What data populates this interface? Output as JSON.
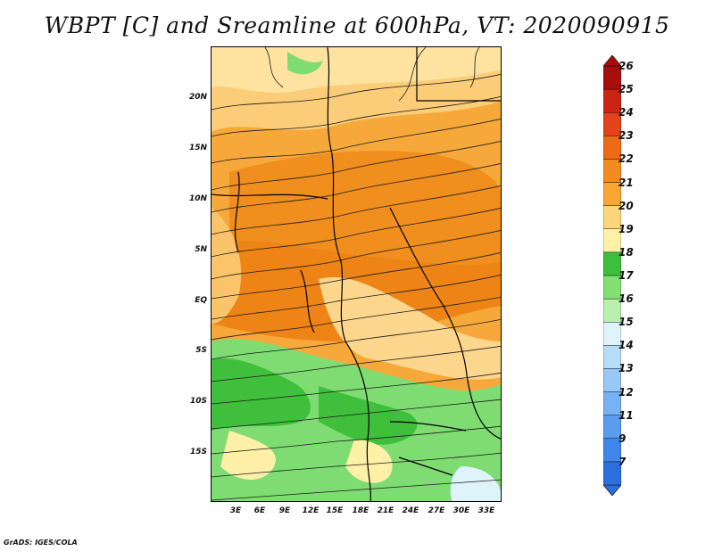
{
  "title": "WBPT [C] and Sreamline at 600hPa, VT: 2020090915",
  "footer": "GrADS: IGES/COLA",
  "lat_labels": [
    "20N",
    "15N",
    "10N",
    "5N",
    "EQ",
    "5S",
    "10S",
    "15S"
  ],
  "lon_labels": [
    "3E",
    "6E",
    "9E",
    "12E",
    "15E",
    "18E",
    "21E",
    "24E",
    "27E",
    "30E",
    "33E"
  ],
  "colorbar": {
    "labels": [
      "7",
      "9",
      "11",
      "12",
      "13",
      "14",
      "15",
      "16",
      "17",
      "18",
      "19",
      "20",
      "21",
      "22",
      "23",
      "24",
      "25",
      "26"
    ],
    "colors": [
      "#2a6fdc",
      "#3f86ea",
      "#5a9cf0",
      "#78b2f4",
      "#98c8f6",
      "#b6dcf8",
      "#dff3fb",
      "#b9f0ae",
      "#82df74",
      "#3cbf3c",
      "#fff2a8",
      "#ffd67a",
      "#f9a734",
      "#f38c1e",
      "#ee6a16",
      "#e4421a",
      "#cc2414",
      "#a90e0e"
    ]
  },
  "map": {
    "variable": "WBPT",
    "units": "C",
    "level": "600hPa",
    "valid_time": "2020090915"
  }
}
